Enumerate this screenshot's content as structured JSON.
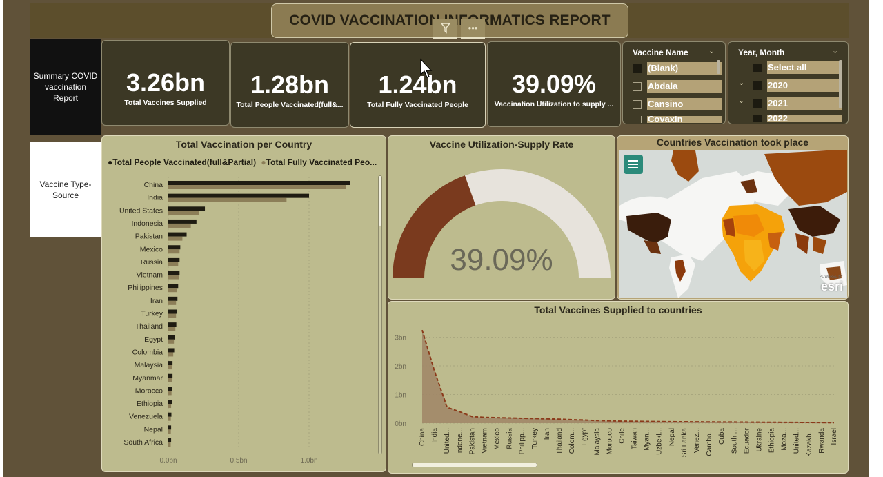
{
  "report": {
    "title": "COVID VACCINATION INFORMATICS REPORT"
  },
  "nav": {
    "summary": "Summary COVID vaccination Report",
    "vaccine_type": "Vaccine Type-Source"
  },
  "kpis": [
    {
      "value": "3.26bn",
      "label": "Total Vaccines Supplied"
    },
    {
      "value": "1.28bn",
      "label": "Total People Vaccinated(full&..."
    },
    {
      "value": "1.24bn",
      "label": "Total Fully Vaccinated People"
    },
    {
      "value": "39.09%",
      "label": "Vaccination Utilization to supply ..."
    }
  ],
  "slicers": {
    "vaccine_name": {
      "title": "Vaccine Name",
      "items": [
        "(Blank)",
        "Abdala",
        "Cansino",
        "Covaxin"
      ]
    },
    "year_month": {
      "title": "Year, Month",
      "items": [
        "Select all",
        "2020",
        "2021",
        "2022"
      ]
    }
  },
  "icons": {
    "filter": "filter-icon",
    "more": "more-options-icon",
    "chevron": "chevron-down-icon",
    "map_menu": "menu-icon"
  },
  "colors": {
    "dark_series": "#1f1c12",
    "light_series": "#8c7e58",
    "gauge_fill": "#7a3a1e",
    "gauge_track": "#e7e3dc",
    "panel_bg": "#bdbb8e",
    "kpi_bg": "#3c3825"
  },
  "map": {
    "title": "Countries Vaccination took place",
    "attribution": "esri",
    "powered_by": "POWERED BY"
  },
  "chart_data": [
    {
      "type": "bar",
      "title": "Total Vaccination per Country",
      "orientation": "horizontal",
      "categories": [
        "China",
        "India",
        "United States",
        "Indonesia",
        "Pakistan",
        "Mexico",
        "Russia",
        "Vietnam",
        "Philippines",
        "Iran",
        "Turkey",
        "Thailand",
        "Egypt",
        "Colombia",
        "Malaysia",
        "Myanmar",
        "Morocco",
        "Ethiopia",
        "Venezuela",
        "Nepal",
        "South Africa"
      ],
      "series": [
        {
          "name": "Total People Vaccinated(full&Partial)",
          "values": [
            1.29,
            1.0,
            0.26,
            0.2,
            0.13,
            0.085,
            0.08,
            0.08,
            0.07,
            0.065,
            0.06,
            0.057,
            0.045,
            0.042,
            0.03,
            0.03,
            0.025,
            0.025,
            0.022,
            0.02,
            0.02
          ]
        },
        {
          "name": "Total Fully Vaccinated Peo...",
          "values": [
            1.26,
            0.84,
            0.22,
            0.16,
            0.1,
            0.08,
            0.07,
            0.075,
            0.06,
            0.055,
            0.055,
            0.05,
            0.04,
            0.035,
            0.028,
            0.025,
            0.023,
            0.02,
            0.018,
            0.018,
            0.017
          ]
        }
      ],
      "xticks": [
        "0.0bn",
        "0.5bn",
        "1.0bn"
      ],
      "xlim": [
        0,
        1.3
      ]
    },
    {
      "type": "gauge",
      "title": "Vaccine Utilization-Supply Rate",
      "value": 39.09,
      "label": "39.09%"
    },
    {
      "type": "area",
      "title": "Total Vaccines Supplied to countries",
      "categories": [
        "China",
        "India",
        "United...",
        "Indone...",
        "Pakistan",
        "Vietnam",
        "Mexico",
        "Russia",
        "Philipp...",
        "Turkey",
        "Iran",
        "Thailand",
        "Colom...",
        "Egypt",
        "Malaysia",
        "Morocco",
        "Chile",
        "Taiwan",
        "Myan...",
        "Uzbeki...",
        "Nepal",
        "Sri Lanka",
        "Venez...",
        "Cambo...",
        "Cuba",
        "South ...",
        "Ecuador",
        "Ukraine",
        "Ethiopia",
        "Moza...",
        "United...",
        "Kazakh...",
        "Rwanda",
        "Israel"
      ],
      "values": [
        3.25,
        1.8,
        0.55,
        0.4,
        0.23,
        0.2,
        0.19,
        0.18,
        0.17,
        0.16,
        0.15,
        0.14,
        0.12,
        0.11,
        0.09,
        0.08,
        0.07,
        0.065,
        0.06,
        0.055,
        0.05,
        0.048,
        0.045,
        0.042,
        0.04,
        0.038,
        0.035,
        0.032,
        0.03,
        0.028,
        0.026,
        0.024,
        0.02,
        0.018
      ],
      "yticks": [
        "0bn",
        "1bn",
        "2bn",
        "3bn"
      ],
      "ylim": [
        0,
        3.4
      ]
    }
  ]
}
